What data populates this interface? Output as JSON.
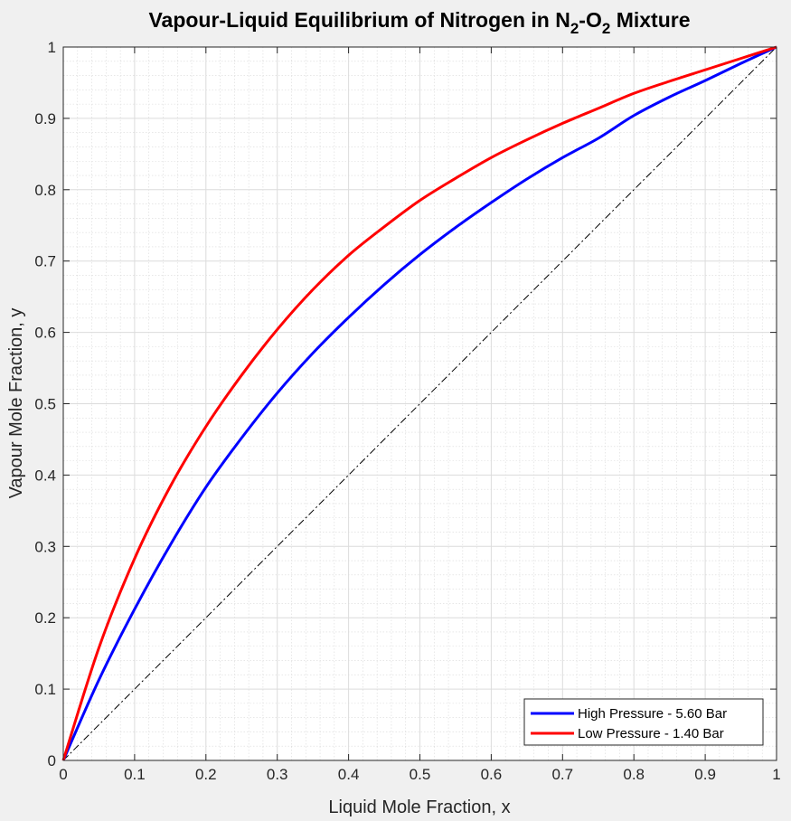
{
  "chart_data": {
    "type": "line",
    "title": {
      "main": "Vapour-Liquid Equilibrium of Nitrogen in N",
      "sub1": "2",
      "mid": "-O",
      "sub2": "2",
      "tail": " Mixture"
    },
    "xlabel": "Liquid Mole Fraction, x",
    "ylabel": "Vapour Mole Fraction, y",
    "xlim": [
      0,
      1
    ],
    "ylim": [
      0,
      1
    ],
    "xticks": [
      "0",
      "0.1",
      "0.2",
      "0.3",
      "0.4",
      "0.5",
      "0.6",
      "0.7",
      "0.8",
      "0.9",
      "1"
    ],
    "yticks": [
      "0",
      "0.1",
      "0.2",
      "0.3",
      "0.4",
      "0.5",
      "0.6",
      "0.7",
      "0.8",
      "0.9",
      "1"
    ],
    "grid": true,
    "minor_grid": true,
    "legend_position": "bottom-right",
    "x": [
      0,
      0.05,
      0.1,
      0.15,
      0.2,
      0.25,
      0.3,
      0.35,
      0.4,
      0.45,
      0.5,
      0.55,
      0.6,
      0.65,
      0.7,
      0.75,
      0.8,
      0.85,
      0.9,
      0.95,
      1
    ],
    "series": [
      {
        "name": "High Pressure - 5.60 Bar",
        "color": "#0000ff",
        "values": [
          0,
          0.113,
          0.212,
          0.302,
          0.383,
          0.452,
          0.515,
          0.571,
          0.621,
          0.667,
          0.709,
          0.747,
          0.782,
          0.815,
          0.845,
          0.872,
          0.904,
          0.93,
          0.953,
          0.977,
          1
        ]
      },
      {
        "name": "Low Pressure - 1.40 Bar",
        "color": "#ff0000",
        "values": [
          0,
          0.158,
          0.283,
          0.384,
          0.468,
          0.54,
          0.604,
          0.66,
          0.708,
          0.748,
          0.785,
          0.816,
          0.845,
          0.87,
          0.893,
          0.914,
          0.935,
          0.952,
          0.968,
          0.984,
          1
        ]
      }
    ],
    "reference_line": {
      "style": "dash-dot",
      "color": "#000000",
      "x": [
        0,
        1
      ],
      "y": [
        0,
        1
      ]
    }
  }
}
